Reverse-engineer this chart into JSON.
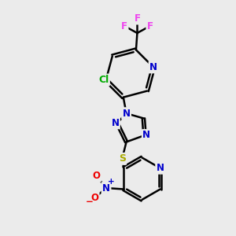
{
  "bg_color": "#ebebeb",
  "bond_color": "#000000",
  "bond_width": 1.8,
  "atom_colors": {
    "C": "#000000",
    "N": "#0000cc",
    "O": "#ee0000",
    "S": "#aaaa00",
    "F": "#ee44ee",
    "Cl": "#00aa00"
  },
  "font_size": 8.5,
  "figsize": [
    3.0,
    3.0
  ],
  "dpi": 100
}
